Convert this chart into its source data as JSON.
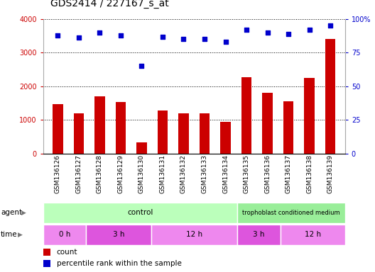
{
  "title": "GDS2414 / 227167_s_at",
  "samples": [
    "GSM136126",
    "GSM136127",
    "GSM136128",
    "GSM136129",
    "GSM136130",
    "GSM136131",
    "GSM136132",
    "GSM136133",
    "GSM136134",
    "GSM136135",
    "GSM136136",
    "GSM136137",
    "GSM136138",
    "GSM136139"
  ],
  "counts": [
    1470,
    1200,
    1700,
    1540,
    330,
    1280,
    1200,
    1200,
    950,
    2280,
    1800,
    1560,
    2250,
    3400
  ],
  "percentiles": [
    88,
    86,
    90,
    88,
    65,
    87,
    85,
    85,
    83,
    92,
    90,
    89,
    92,
    95
  ],
  "bar_color": "#cc0000",
  "dot_color": "#0000cc",
  "ylim_left": [
    0,
    4000
  ],
  "ylim_right": [
    0,
    100
  ],
  "yticks_left": [
    0,
    1000,
    2000,
    3000,
    4000
  ],
  "yticks_right": [
    0,
    25,
    50,
    75,
    100
  ],
  "ytick_labels_left": [
    "0",
    "1000",
    "2000",
    "3000",
    "4000"
  ],
  "ytick_labels_right": [
    "0",
    "25",
    "50",
    "75",
    "100%"
  ],
  "control_color": "#bbffbb",
  "troph_color": "#99ee99",
  "time_color_light": "#ee88ee",
  "time_color_dark": "#dd55dd",
  "agent_label": "agent",
  "time_label": "time",
  "legend_count_label": "count",
  "legend_pct_label": "percentile rank within the sample",
  "background_color": "#ffffff",
  "grid_color": "#000000",
  "title_fontsize": 10,
  "tick_fontsize": 7,
  "label_fontsize": 8
}
